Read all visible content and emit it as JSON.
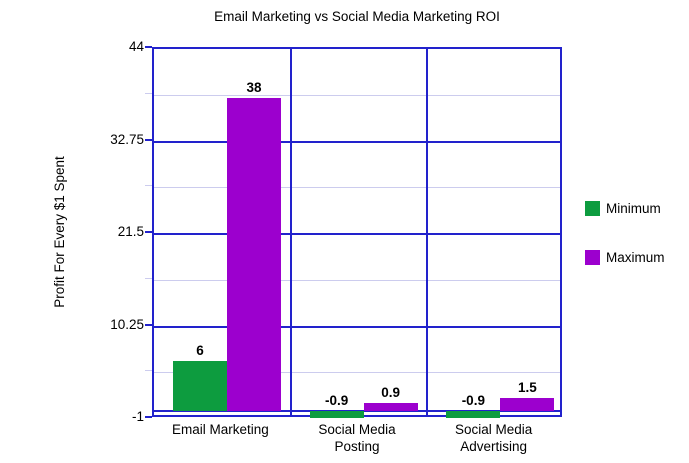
{
  "title": "Email Marketing vs Social Media Marketing ROI",
  "colors": {
    "axis": "#2222CC",
    "minor_grid": "#CCCCEE",
    "background": "#FFFFFF",
    "text": "#000000",
    "minimum_green": "#0D9C3F",
    "maximum_purple": "#9C00CE"
  },
  "chart_data": {
    "type": "bar",
    "title": "Email Marketing vs Social Media Marketing ROI",
    "ylabel": "Profit For Every $1 Spent",
    "xlabel": "",
    "categories": [
      "Email Marketing",
      "Social Media Posting",
      "Social Media Advertising"
    ],
    "series": [
      {
        "name": "Minimum",
        "color": "#0D9C3F",
        "values": [
          6,
          -0.9,
          -0.9
        ],
        "labels": [
          "6",
          "-0.9",
          "-0.9"
        ]
      },
      {
        "name": "Maximum",
        "color": "#9C00CE",
        "values": [
          38,
          0.9,
          1.5
        ],
        "labels": [
          "38",
          "0.9",
          "1.5"
        ]
      }
    ],
    "ylim": [
      -1,
      44
    ],
    "yticks": [
      {
        "value": 44,
        "label": "44"
      },
      {
        "value": 32.75,
        "label": "32.75"
      },
      {
        "value": 21.5,
        "label": "21.5"
      },
      {
        "value": 10.25,
        "label": "10.25"
      },
      {
        "value": -1,
        "label": "-1"
      }
    ],
    "minor_yticks": [
      38.375,
      27.125,
      15.875,
      4.625
    ],
    "zero_line": 0,
    "grid": true,
    "legend_position": "right",
    "legend": [
      {
        "label": "Minimum",
        "color": "#0D9C3F"
      },
      {
        "label": "Maximum",
        "color": "#9C00CE"
      }
    ]
  }
}
